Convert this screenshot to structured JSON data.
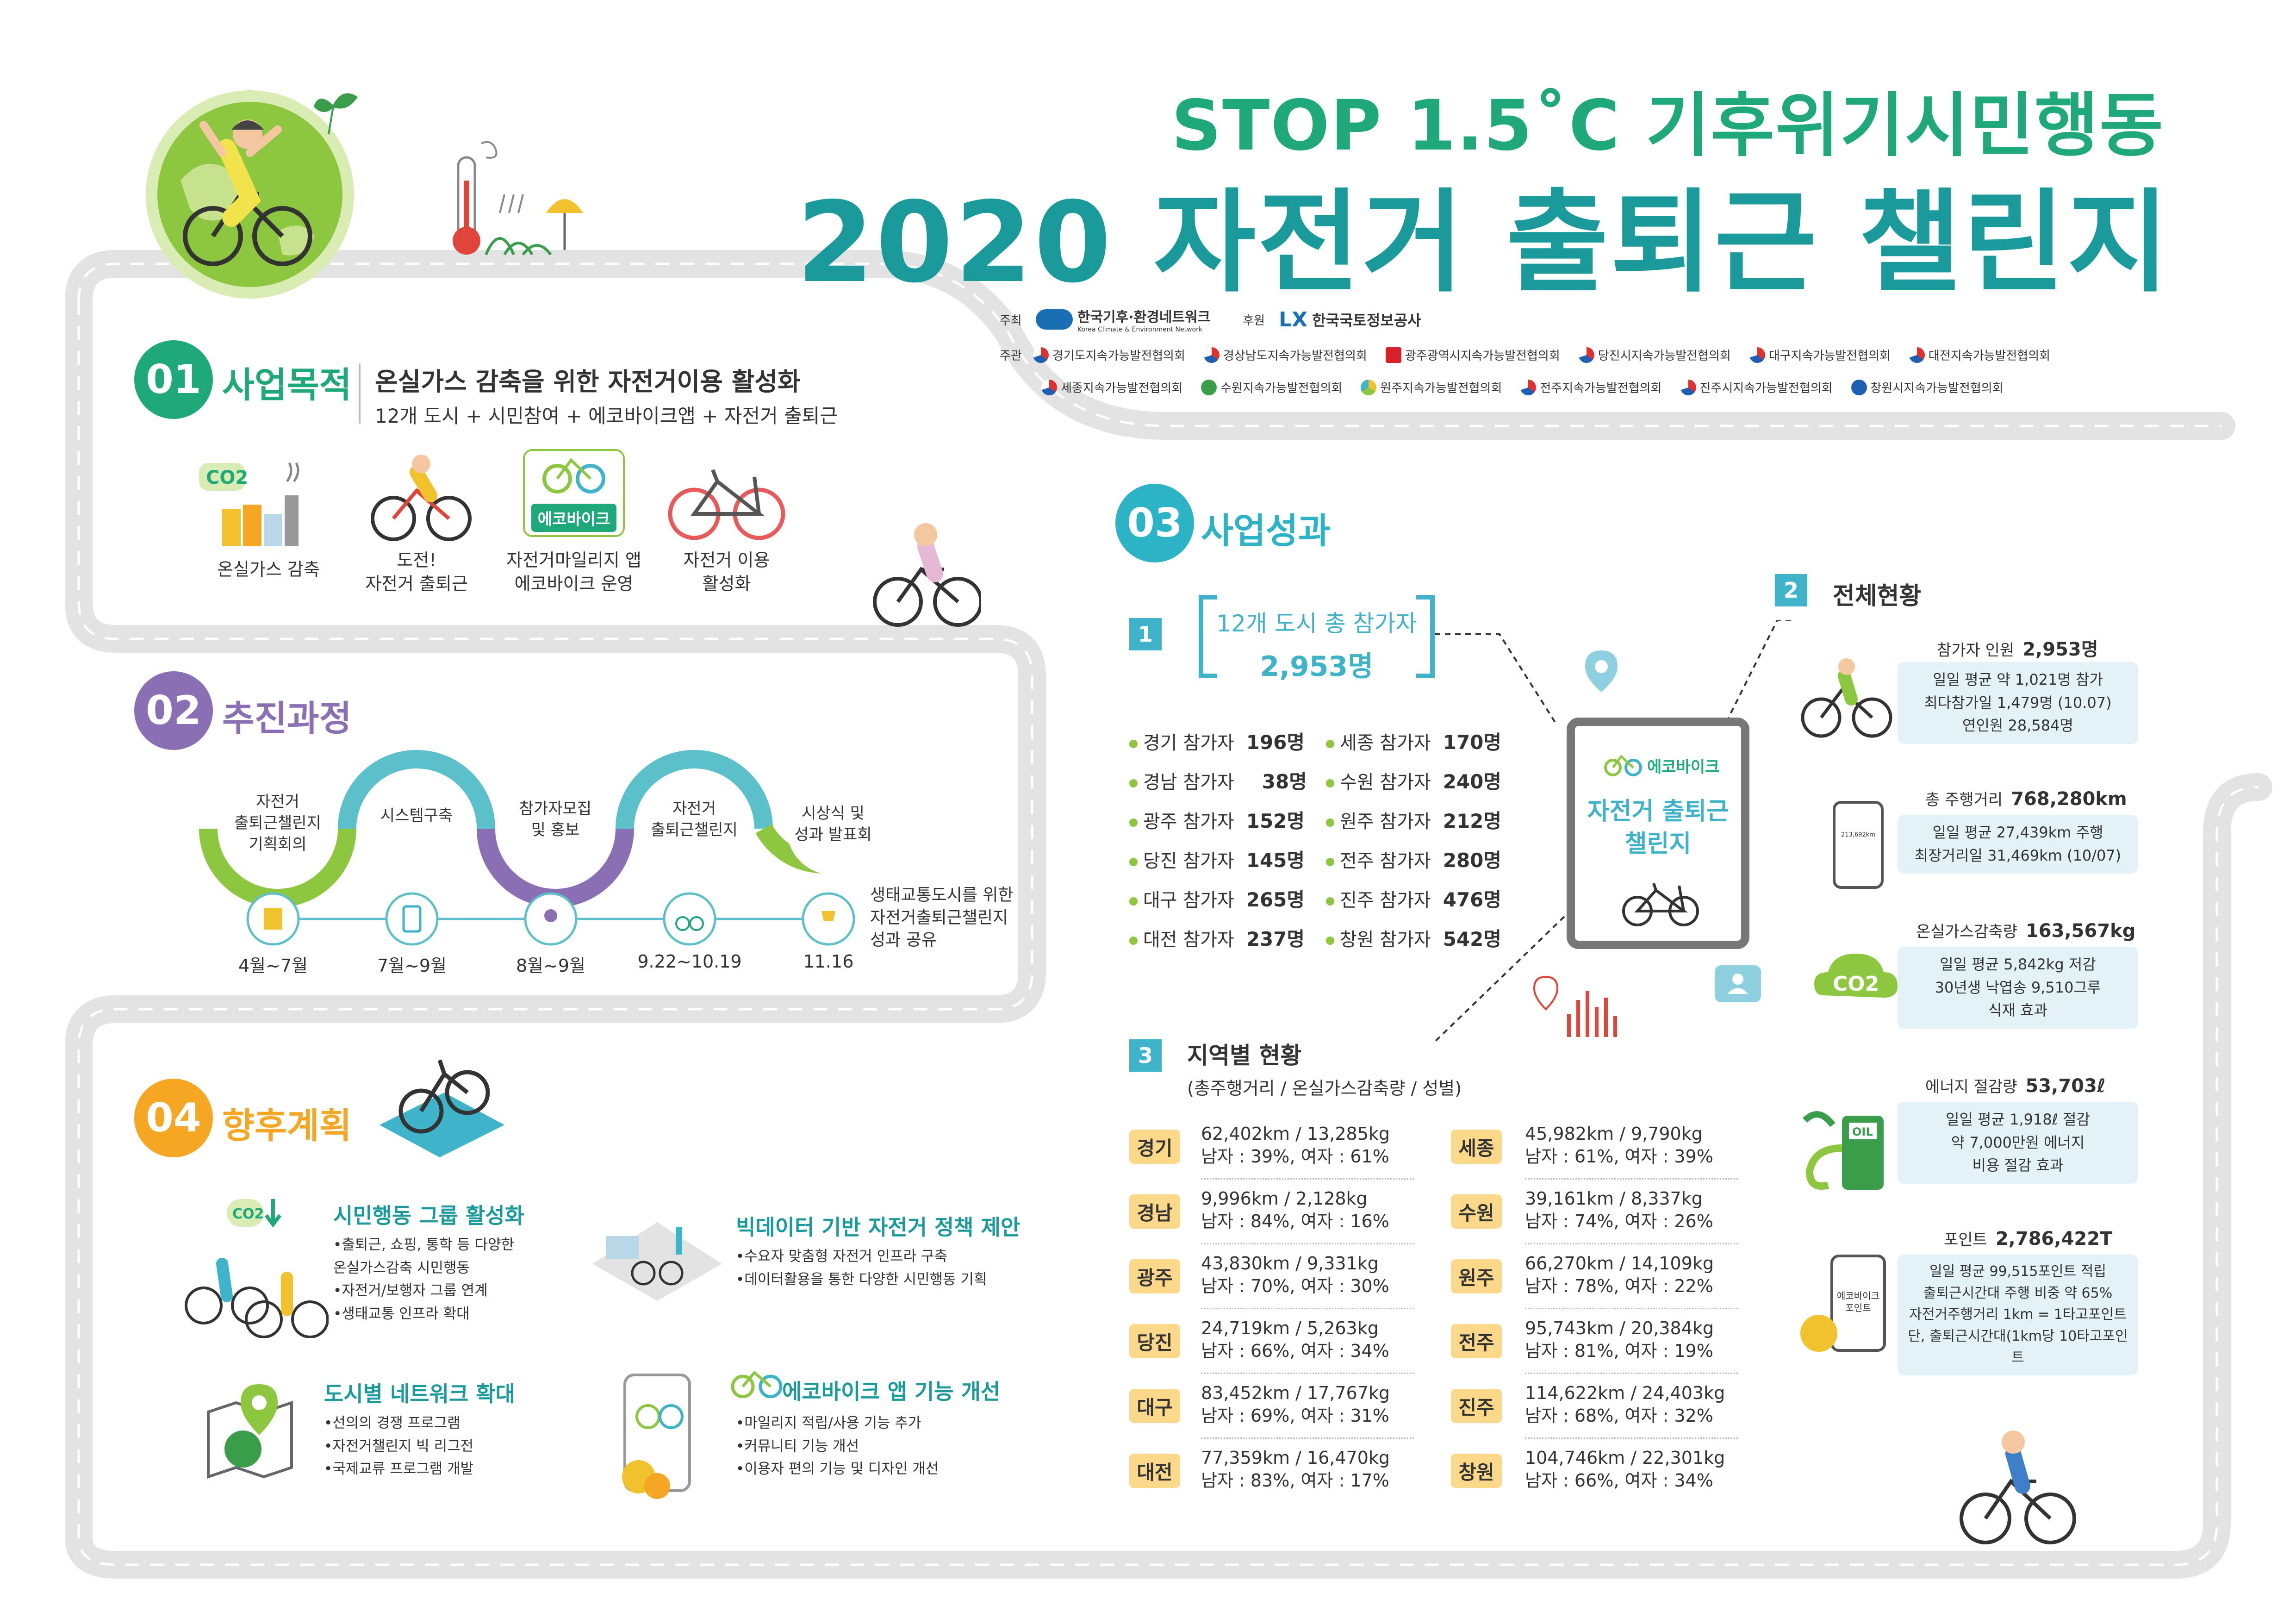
{
  "header": {
    "line1": "STOP 1.5˚C 기후위기시민행동",
    "line2": "2020 자전거 출퇴근 챌린지"
  },
  "organizers": {
    "host_label": "주최",
    "host_name": "한국기후·환경네트워크",
    "host_sub": "Korea Climate & Environment Network",
    "sponsor_label": "후원",
    "sponsor_name": "한국국토정보공사",
    "organize_label": "주관",
    "row1": [
      "경기도지속가능발전협의회",
      "경상남도지속가능발전협의회",
      "광주광역시지속가능발전협의회",
      "당진시지속가능발전협의회",
      "대구지속가능발전협의회",
      "대전지속가능발전협의회"
    ],
    "row2": [
      "세종지속가능발전협의회",
      "수원지속가능발전협의회",
      "원주지속가능발전협의회",
      "전주지속가능발전협의회",
      "진주시지속가능발전협의회",
      "창원시지속가능발전협의회"
    ]
  },
  "section1": {
    "num": "01",
    "title": "사업목적",
    "headline": "온실가스 감축을 위한 자전거이용 활성화",
    "subline": "12개 도시 + 시민참여 + 에코바이크앱 + 자전거 출퇴근",
    "items": [
      {
        "label": "온실가스 감축"
      },
      {
        "label": "도전!\n자전거 출퇴근"
      },
      {
        "label": "자전거마일리지 앱\n에코바이크 운영"
      },
      {
        "label": "자전거 이용\n활성화"
      }
    ],
    "co2_text": "CO2",
    "ecobike_badge": "에코바이크"
  },
  "section2": {
    "num": "02",
    "title": "추진과정",
    "phases": [
      {
        "label": "자전거\n출퇴근챌린지\n기획회의",
        "date": "4월~7월"
      },
      {
        "label": "시스템구축",
        "date": "7월~9월"
      },
      {
        "label": "참가자모집\n및 홍보",
        "date": "8월~9월"
      },
      {
        "label": "자전거\n출퇴근챌린지",
        "date": "9.22~10.19"
      },
      {
        "label": "시상식 및\n성과 발표회",
        "date": "11.16"
      }
    ],
    "note": "생태교통도시를 위한\n자전거출퇴근챌린지\n성과 공유"
  },
  "section3": {
    "num": "03",
    "title": "사업성과",
    "total": {
      "badge": "1",
      "title": "12개 도시 총 참가자",
      "value": "2,953명"
    },
    "cities_left": [
      {
        "name": "경기 참가자",
        "value": "196명"
      },
      {
        "name": "경남 참가자",
        "value": "38명"
      },
      {
        "name": "광주 참가자",
        "value": "152명"
      },
      {
        "name": "당진 참가자",
        "value": "145명"
      },
      {
        "name": "대구 참가자",
        "value": "265명"
      },
      {
        "name": "대전 참가자",
        "value": "237명"
      }
    ],
    "cities_right": [
      {
        "name": "세종 참가자",
        "value": "170명"
      },
      {
        "name": "수원 참가자",
        "value": "240명"
      },
      {
        "name": "원주 참가자",
        "value": "212명"
      },
      {
        "name": "전주 참가자",
        "value": "280명"
      },
      {
        "name": "진주 참가자",
        "value": "476명"
      },
      {
        "name": "창원 참가자",
        "value": "542명"
      }
    ],
    "tablet": {
      "brand": "에코바이크",
      "title": "자전거 출퇴근\n챌린지"
    },
    "overall": {
      "badge": "2",
      "title": "전체현황",
      "blocks": [
        {
          "label": "참가자 인원",
          "value": "2,953명",
          "detail": "일일 평균 약 1,021명 참가\n최다참가일 1,479명 (10.07)\n연인원 28,584명"
        },
        {
          "label": "총 주행거리",
          "value": "768,280km",
          "detail": "일일 평균 27,439km 주행\n최장거리일 31,469km (10/07)"
        },
        {
          "label": "온실가스감축량",
          "value": "163,567kg",
          "detail": "일일 평균 5,842kg 저감\n30년생 낙엽송 9,510그루\n식재 효과"
        },
        {
          "label": "에너지 절감량",
          "value": "53,703ℓ",
          "detail": "일일 평균 1,918ℓ 절감\n약 7,000만원 에너지\n비용 절감 효과"
        },
        {
          "label": "포인트",
          "value": "2,786,422T",
          "detail": "일일 평균 99,515포인트 적립\n출퇴근시간대 주행 비중 약 65%\n자전거주행거리 1km = 1타고포인트\n단, 출퇴근시간대(1km당 10타고포인트"
        }
      ],
      "phone_km": "213,692km",
      "oil_label": "OIL",
      "point_badge": "에코바이크\n포인트"
    },
    "regional": {
      "badge": "3",
      "title": "지역별 현황",
      "subtitle": "(총주행거리 / 온실가스감축량 / 성별)",
      "left": [
        {
          "city": "경기",
          "line1": "62,402km / 13,285kg",
          "line2": "남자 : 39%, 여자 : 61%"
        },
        {
          "city": "경남",
          "line1": "9,996km / 2,128kg",
          "line2": "남자 : 84%, 여자 : 16%"
        },
        {
          "city": "광주",
          "line1": "43,830km / 9,331kg",
          "line2": "남자 : 70%, 여자 : 30%"
        },
        {
          "city": "당진",
          "line1": "24,719km / 5,263kg",
          "line2": "남자 : 66%, 여자 : 34%"
        },
        {
          "city": "대구",
          "line1": "83,452km / 17,767kg",
          "line2": "남자 : 69%, 여자 : 31%"
        },
        {
          "city": "대전",
          "line1": "77,359km / 16,470kg",
          "line2": "남자 : 83%, 여자 : 17%"
        }
      ],
      "right": [
        {
          "city": "세종",
          "line1": "45,982km / 9,790kg",
          "line2": "남자 : 61%, 여자 : 39%"
        },
        {
          "city": "수원",
          "line1": "39,161km / 8,337kg",
          "line2": "남자 : 74%, 여자 : 26%"
        },
        {
          "city": "원주",
          "line1": "66,270km / 14,109kg",
          "line2": "남자 : 78%, 여자 : 22%"
        },
        {
          "city": "전주",
          "line1": "95,743km / 20,384kg",
          "line2": "남자 : 81%, 여자 : 19%"
        },
        {
          "city": "진주",
          "line1": "114,622km / 24,403kg",
          "line2": "남자 : 68%, 여자 : 32%"
        },
        {
          "city": "창원",
          "line1": "104,746km / 22,301kg",
          "line2": "남자 : 66%, 여자 : 34%"
        }
      ]
    }
  },
  "section4": {
    "num": "04",
    "title": "향후계획",
    "plans": [
      {
        "title": "시민행동 그룹 활성화",
        "items": [
          "•출퇴근, 쇼핑, 통학 등 다양한",
          "  온실가스감축 시민행동",
          "•자전거/보행자 그룹 연계",
          "•생태교통 인프라 확대"
        ]
      },
      {
        "title": "빅데이터 기반 자전거 정책 제안",
        "items": [
          "•수요자 맞춤형 자전거 인프라 구축",
          "•데이터활용을 통한 다양한 시민행동 기획"
        ]
      },
      {
        "title": "도시별 네트워크 확대",
        "items": [
          "•선의의 경쟁 프로그램",
          "•자전거챌린지 빅 리그전",
          "•국제교류 프로그램 개발"
        ]
      },
      {
        "title": "에코바이크 앱 기능 개선",
        "items": [
          "•마일리지 적립/사용 기능 추가",
          "•커뮤니티 기능 개선",
          "•이용자 편의 기능 및 디자인 개선"
        ]
      }
    ]
  },
  "colors": {
    "green": "#1fa87a",
    "teal": "#1a9a9a",
    "sec1": "#1fa87a",
    "sec2": "#8a6fb5",
    "sec3": "#2cb3c6",
    "sec4": "#f5a623",
    "road": "#e3e3e3",
    "light_blue": "#e3f2f7",
    "yellow_tag": "#fbd88a"
  }
}
